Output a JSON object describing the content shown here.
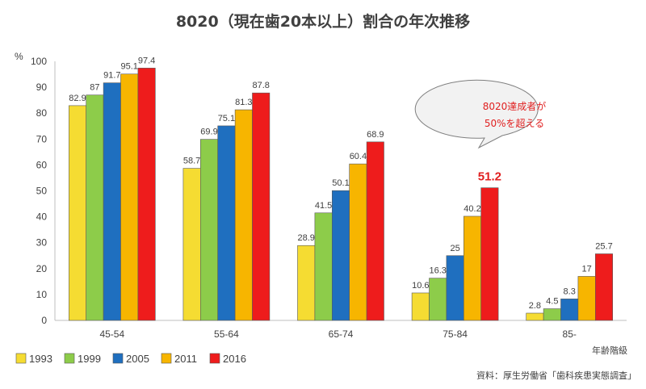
{
  "chart_data": {
    "type": "bar",
    "title": "8020（現在歯20本以上）割合の年次推移",
    "ylabel": "%",
    "xlabel": "年齢階級",
    "ylim": [
      0,
      100
    ],
    "yticks": [
      0,
      10,
      20,
      30,
      40,
      50,
      60,
      70,
      80,
      90,
      100
    ],
    "categories": [
      "45-54",
      "55-64",
      "65-74",
      "75-84",
      "85-"
    ],
    "series": [
      {
        "name": "1993",
        "color": "#f5dc32",
        "values": [
          82.9,
          58.7,
          28.9,
          10.6,
          2.8
        ]
      },
      {
        "name": "1999",
        "color": "#8dcc4a",
        "values": [
          87,
          69.9,
          41.5,
          16.3,
          4.5
        ]
      },
      {
        "name": "2005",
        "color": "#1f6fbf",
        "values": [
          91.7,
          75.1,
          50.1,
          25,
          8.3
        ]
      },
      {
        "name": "2011",
        "color": "#f7b500",
        "values": [
          95.1,
          81.3,
          60.4,
          40.2,
          17
        ]
      },
      {
        "name": "2016",
        "color": "#ee1c1c",
        "values": [
          97.4,
          87.8,
          68.9,
          51.2,
          25.7
        ]
      }
    ],
    "highlight": {
      "category": "75-84",
      "series": "2016",
      "value": "51.2"
    },
    "annotation": {
      "line1": "8020達成者が",
      "line2": "50%を超える"
    },
    "legend_position": "bottom-left",
    "source": "資料：厚生労働省「歯科疾患実態調査」",
    "grid": false
  }
}
